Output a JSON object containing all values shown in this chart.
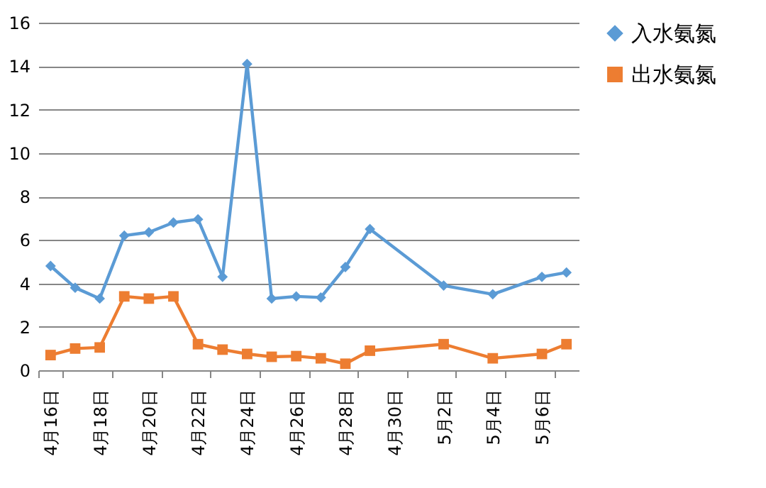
{
  "chart_data": {
    "type": "line",
    "categories": [
      "4月16日",
      null,
      "4月18日",
      null,
      "4月20日",
      null,
      "4月22日",
      null,
      "4月24日",
      null,
      "4月26日",
      null,
      "4月28日",
      null,
      "4月30日",
      null,
      "5月2日",
      null,
      "5月4日",
      null,
      "5月6日",
      null
    ],
    "series": [
      {
        "name": "入水氨氮",
        "color": "#5b9bd5",
        "marker": "diamond",
        "values": [
          4.8,
          3.8,
          3.3,
          6.2,
          6.35,
          6.8,
          6.95,
          4.3,
          14.1,
          3.3,
          3.4,
          3.35,
          4.75,
          6.5,
          null,
          null,
          3.9,
          null,
          3.5,
          null,
          4.3,
          4.5
        ]
      },
      {
        "name": "出水氨氮",
        "color": "#ed7d31",
        "marker": "square",
        "values": [
          0.7,
          1.0,
          1.05,
          3.4,
          3.3,
          3.4,
          1.2,
          0.95,
          0.75,
          0.62,
          0.65,
          0.55,
          0.3,
          0.9,
          null,
          null,
          1.2,
          null,
          0.55,
          null,
          0.75,
          1.2
        ]
      }
    ],
    "ylim": [
      0,
      16
    ],
    "yticks": [
      0,
      2,
      4,
      6,
      8,
      10,
      12,
      14,
      16
    ],
    "grid": "y",
    "legend": "right",
    "line_style": "solid"
  }
}
